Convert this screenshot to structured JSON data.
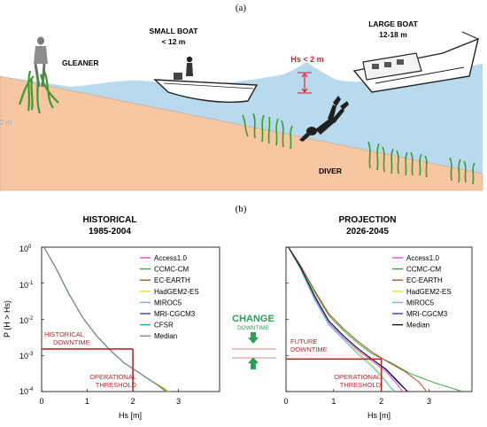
{
  "panel_a": {
    "label": "(a)",
    "gleaner": "GLEANER",
    "small_boat": {
      "line1": "SMALL BOAT",
      "line2": "< 12 m"
    },
    "large_boat": {
      "line1": "LARGE BOAT",
      "line2": "12-18 m"
    },
    "hs_label": "Hs < 2 m",
    "diver": "DIVER",
    "depth_tick": "2 m"
  },
  "panel_b": {
    "label": "(b)",
    "change": {
      "word": "CHANGE",
      "sub": "DOWNTIME"
    }
  },
  "colors": {
    "sea": "#b8d9ee",
    "sand": "#f7c7a3",
    "threshold_red": "#c0262c",
    "change_green": "#2f9e57",
    "hs_red": "#d62027",
    "grass": "#3c9a2e"
  },
  "chart_data": [
    {
      "type": "line",
      "title": "HISTORICAL",
      "subtitle": "1985-2004",
      "xlabel": "Hs [m]",
      "ylabel": "P (H > Hs)",
      "xlim": [
        0,
        3.9
      ],
      "ylim_exp": [
        -4,
        0
      ],
      "yscale": "log",
      "x_ticks": [
        "0",
        "1",
        "2",
        "3"
      ],
      "y_ticks": [
        "10^0",
        "10^-1",
        "10^-2",
        "10^-3",
        "10^-4"
      ],
      "legend_position": "right",
      "legend": [
        "Access1.0",
        "CCMC-CM",
        "EC-EARTH",
        "HadGEM2-ES",
        "MIROC5",
        "MRI-CGCM3",
        "CFSR",
        "Median"
      ],
      "series": [
        {
          "name": "Access1.0",
          "color": "#d84fd8",
          "points": [
            [
              0.05,
              0
            ],
            [
              0.3,
              -0.55
            ],
            [
              0.6,
              -1.3
            ],
            [
              0.9,
              -1.95
            ],
            [
              1.2,
              -2.45
            ],
            [
              1.5,
              -2.85
            ],
            [
              1.8,
              -3.2
            ],
            [
              2.1,
              -3.45
            ],
            [
              2.4,
              -3.7
            ],
            [
              2.62,
              -3.88
            ],
            [
              2.74,
              -4
            ]
          ]
        },
        {
          "name": "CCMC-CM",
          "color": "#3aa83a",
          "points": [
            [
              0.05,
              0
            ],
            [
              0.3,
              -0.55
            ],
            [
              0.6,
              -1.3
            ],
            [
              0.9,
              -1.95
            ],
            [
              1.2,
              -2.45
            ],
            [
              1.5,
              -2.85
            ],
            [
              1.8,
              -3.2
            ],
            [
              2.1,
              -3.45
            ],
            [
              2.4,
              -3.7
            ],
            [
              2.63,
              -3.88
            ],
            [
              2.76,
              -4
            ]
          ]
        },
        {
          "name": "EC-EARTH",
          "color": "#b5502f",
          "points": [
            [
              0.05,
              0
            ],
            [
              0.3,
              -0.55
            ],
            [
              0.6,
              -1.3
            ],
            [
              0.9,
              -1.95
            ],
            [
              1.2,
              -2.45
            ],
            [
              1.5,
              -2.85
            ],
            [
              1.8,
              -3.2
            ],
            [
              2.1,
              -3.45
            ],
            [
              2.4,
              -3.7
            ],
            [
              2.6,
              -3.88
            ],
            [
              2.72,
              -4
            ]
          ]
        },
        {
          "name": "HadGEM2-ES",
          "color": "#e8e03c",
          "points": [
            [
              0.05,
              0
            ],
            [
              0.3,
              -0.55
            ],
            [
              0.6,
              -1.3
            ],
            [
              0.9,
              -1.95
            ],
            [
              1.2,
              -2.45
            ],
            [
              1.5,
              -2.85
            ],
            [
              1.8,
              -3.2
            ],
            [
              2.1,
              -3.45
            ],
            [
              2.4,
              -3.7
            ],
            [
              2.66,
              -3.88
            ],
            [
              2.8,
              -4
            ]
          ]
        },
        {
          "name": "MIROC5",
          "color": "#45c4f0",
          "points": [
            [
              0.05,
              0
            ],
            [
              0.3,
              -0.55
            ],
            [
              0.6,
              -1.3
            ],
            [
              0.9,
              -1.95
            ],
            [
              1.2,
              -2.45
            ],
            [
              1.5,
              -2.85
            ],
            [
              1.8,
              -3.2
            ],
            [
              2.1,
              -3.45
            ],
            [
              2.4,
              -3.7
            ],
            [
              2.61,
              -3.88
            ],
            [
              2.73,
              -4
            ]
          ]
        },
        {
          "name": "MRI-CGCM3",
          "color": "#3b3bd1",
          "points": [
            [
              0.05,
              0
            ],
            [
              0.3,
              -0.55
            ],
            [
              0.6,
              -1.3
            ],
            [
              0.9,
              -1.95
            ],
            [
              1.2,
              -2.45
            ],
            [
              1.5,
              -2.85
            ],
            [
              1.8,
              -3.2
            ],
            [
              2.1,
              -3.45
            ],
            [
              2.4,
              -3.7
            ],
            [
              2.62,
              -3.88
            ],
            [
              2.75,
              -4
            ]
          ]
        },
        {
          "name": "CFSR",
          "color": "#27a7a0",
          "points": [
            [
              0.05,
              0
            ],
            [
              0.3,
              -0.55
            ],
            [
              0.6,
              -1.3
            ],
            [
              0.9,
              -1.95
            ],
            [
              1.2,
              -2.45
            ],
            [
              1.5,
              -2.85
            ],
            [
              1.8,
              -3.2
            ],
            [
              2.1,
              -3.45
            ],
            [
              2.4,
              -3.7
            ],
            [
              2.62,
              -3.88
            ],
            [
              2.75,
              -4
            ]
          ]
        },
        {
          "name": "Median",
          "color": "#888888",
          "points": [
            [
              0.05,
              0
            ],
            [
              0.3,
              -0.55
            ],
            [
              0.6,
              -1.3
            ],
            [
              0.9,
              -1.95
            ],
            [
              1.2,
              -2.45
            ],
            [
              1.5,
              -2.85
            ],
            [
              1.8,
              -3.2
            ],
            [
              2.1,
              -3.45
            ],
            [
              2.4,
              -3.7
            ],
            [
              2.62,
              -3.88
            ],
            [
              2.75,
              -4
            ]
          ]
        }
      ],
      "annotations": {
        "downtime_level_exp": -2.82,
        "threshold_hs": 2,
        "downtime_line1": "HISTORICAL",
        "downtime_line2": "DOWNTIME",
        "threshold_line1": "OPERATIONAL",
        "threshold_line2": "THRESHOLD"
      }
    },
    {
      "type": "line",
      "title": "PROJECTION",
      "subtitle": "2026-2045",
      "xlabel": "Hs [m]",
      "ylabel": "",
      "xlim": [
        0,
        3.9
      ],
      "ylim_exp": [
        -4,
        0
      ],
      "yscale": "log",
      "x_ticks": [
        "0",
        "1",
        "2",
        "3"
      ],
      "legend_position": "right",
      "legend": [
        "Access1.0",
        "CCMC-CM",
        "EC-EARTH",
        "HadGEM2-ES",
        "MIROC5",
        "MRI-CGCM3",
        "Median"
      ],
      "series": [
        {
          "name": "Access1.0",
          "color": "#d84fd8",
          "points": [
            [
              0.05,
              0
            ],
            [
              0.3,
              -0.55
            ],
            [
              0.6,
              -1.4
            ],
            [
              0.9,
              -2.1
            ],
            [
              1.2,
              -2.5
            ],
            [
              1.5,
              -2.85
            ],
            [
              1.8,
              -3.15
            ],
            [
              2.1,
              -3.45
            ],
            [
              2.3,
              -3.75
            ],
            [
              2.45,
              -4
            ]
          ]
        },
        {
          "name": "CCMC-CM",
          "color": "#3aa83a",
          "points": [
            [
              0.05,
              0
            ],
            [
              0.3,
              -0.5
            ],
            [
              0.6,
              -1.25
            ],
            [
              0.9,
              -1.9
            ],
            [
              1.2,
              -2.3
            ],
            [
              1.5,
              -2.65
            ],
            [
              1.8,
              -2.95
            ],
            [
              2.2,
              -3.2
            ],
            [
              2.6,
              -3.5
            ],
            [
              3.1,
              -3.75
            ],
            [
              3.7,
              -4
            ]
          ]
        },
        {
          "name": "EC-EARTH",
          "color": "#b5502f",
          "points": [
            [
              0.05,
              0
            ],
            [
              0.3,
              -0.5
            ],
            [
              0.6,
              -1.2
            ],
            [
              0.9,
              -1.85
            ],
            [
              1.2,
              -2.25
            ],
            [
              1.5,
              -2.6
            ],
            [
              1.8,
              -2.9
            ],
            [
              2.1,
              -3.15
            ],
            [
              2.5,
              -3.45
            ],
            [
              2.8,
              -3.75
            ],
            [
              2.95,
              -4
            ]
          ]
        },
        {
          "name": "HadGEM2-ES",
          "color": "#e8e03c",
          "points": [
            [
              0.05,
              0
            ],
            [
              0.3,
              -0.6
            ],
            [
              0.6,
              -1.45
            ],
            [
              0.9,
              -2.15
            ],
            [
              1.2,
              -2.55
            ],
            [
              1.5,
              -2.9
            ],
            [
              1.8,
              -3.25
            ],
            [
              2.0,
              -3.55
            ],
            [
              2.15,
              -3.8
            ],
            [
              2.25,
              -4
            ]
          ]
        },
        {
          "name": "MIROC5",
          "color": "#45c4f0",
          "points": [
            [
              0.05,
              0
            ],
            [
              0.3,
              -0.6
            ],
            [
              0.6,
              -1.45
            ],
            [
              0.9,
              -2.15
            ],
            [
              1.2,
              -2.55
            ],
            [
              1.5,
              -2.95
            ],
            [
              1.8,
              -3.3
            ],
            [
              2.05,
              -3.65
            ],
            [
              2.2,
              -3.9
            ],
            [
              2.3,
              -4
            ]
          ]
        },
        {
          "name": "MRI-CGCM3",
          "color": "#3b3bd1",
          "points": [
            [
              0.05,
              0
            ],
            [
              0.3,
              -0.55
            ],
            [
              0.6,
              -1.35
            ],
            [
              0.9,
              -2.05
            ],
            [
              1.2,
              -2.45
            ],
            [
              1.5,
              -2.8
            ],
            [
              1.8,
              -3.1
            ],
            [
              2.1,
              -3.4
            ],
            [
              2.35,
              -3.75
            ],
            [
              2.55,
              -4
            ]
          ]
        },
        {
          "name": "Median",
          "color": "#111111",
          "points": [
            [
              0.05,
              0
            ],
            [
              0.3,
              -0.55
            ],
            [
              0.6,
              -1.35
            ],
            [
              0.9,
              -2.05
            ],
            [
              1.2,
              -2.45
            ],
            [
              1.5,
              -2.8
            ],
            [
              1.8,
              -3.1
            ],
            [
              2.1,
              -3.38
            ],
            [
              2.35,
              -3.72
            ],
            [
              2.55,
              -4
            ]
          ]
        }
      ],
      "annotations": {
        "downtime_level_exp": -3.1,
        "threshold_hs": 2,
        "downtime_line1": "FUTURE",
        "downtime_line2": "DOWNTIME",
        "threshold_line1": "OPERATIONAL",
        "threshold_line2": "THRESHOLD"
      }
    }
  ]
}
